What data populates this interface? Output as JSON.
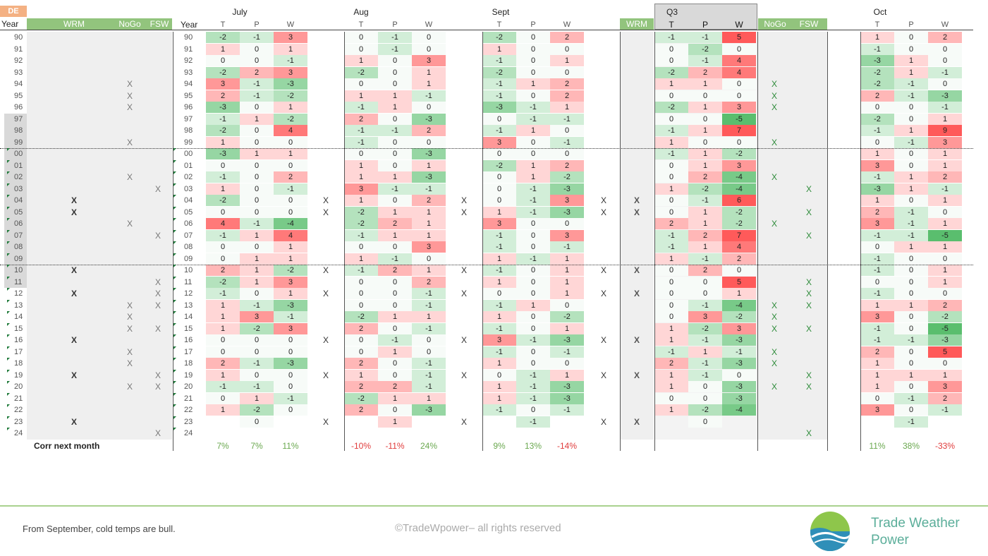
{
  "header": {
    "country": "DE",
    "year_label": "Year",
    "group_labels": [
      "WRM",
      "NoGo",
      "FSW"
    ],
    "months": [
      "July",
      "Aug",
      "Sept",
      "Q3",
      "Oct"
    ],
    "sub_cols": [
      "T",
      "P",
      "W"
    ],
    "q3_wrm": "WRM",
    "q3_nogo": "NoGo",
    "q3_fsw": "FSW"
  },
  "years": [
    "90",
    "91",
    "92",
    "93",
    "94",
    "95",
    "96",
    "97",
    "98",
    "99",
    "00",
    "01",
    "02",
    "03",
    "04",
    "05",
    "06",
    "07",
    "08",
    "09",
    "10",
    "11",
    "12",
    "13",
    "14",
    "15",
    "16",
    "17",
    "18",
    "19",
    "20",
    "21",
    "22",
    "23",
    "24"
  ],
  "shaded_years": [
    7,
    8,
    9,
    10,
    11,
    12,
    13,
    14,
    15,
    16,
    17,
    18,
    19,
    20,
    21
  ],
  "left_marks": {
    "wrm": {
      "14": "X",
      "15": "X",
      "20": "X",
      "22": "X",
      "26": "X",
      "29": "X",
      "33": "X"
    },
    "nogo": {
      "4": "X",
      "5": "X",
      "6": "X",
      "9": "X",
      "12": "X",
      "16": "X",
      "23": "X",
      "24": "X",
      "25": "X",
      "27": "X",
      "28": "X",
      "30": "X"
    },
    "fsw": {
      "13": "X",
      "17": "X",
      "21": "X",
      "22": "X",
      "23": "X",
      "25": "X",
      "29": "X",
      "30": "X",
      "34": "X"
    }
  },
  "month_marks": {
    "14": "X",
    "15": "X",
    "20": "X",
    "22": "X",
    "26": "X",
    "29": "X",
    "33": "X"
  },
  "q3_nogo_marks": {
    "4": "X",
    "5": "X",
    "6": "X",
    "9": "X",
    "12": "X",
    "16": "X",
    "23": "X",
    "24": "X",
    "25": "X",
    "27": "X",
    "28": "X",
    "30": "X"
  },
  "q3_fsw_marks": {
    "13": "X",
    "15": "X",
    "17": "X",
    "21": "X",
    "22": "X",
    "23": "X",
    "25": "X",
    "29": "X",
    "30": "X",
    "34": "X"
  },
  "grid": {
    "July": [
      [
        "-2",
        "-1",
        "3"
      ],
      [
        "1",
        "0",
        "1"
      ],
      [
        "0",
        "0",
        "-1"
      ],
      [
        "-2",
        "2",
        "3"
      ],
      [
        "3",
        "-1",
        "-3"
      ],
      [
        "2",
        "-1",
        "-2"
      ],
      [
        "-3",
        "0",
        "1"
      ],
      [
        "-1",
        "1",
        "-2"
      ],
      [
        "-2",
        "0",
        "4"
      ],
      [
        "1",
        "0",
        "0"
      ],
      [
        "-3",
        "1",
        "1"
      ],
      [
        "0",
        "0",
        "0"
      ],
      [
        "-1",
        "0",
        "2"
      ],
      [
        "1",
        "0",
        "-1"
      ],
      [
        "-2",
        "0",
        "0"
      ],
      [
        "0",
        "0",
        "0"
      ],
      [
        "4",
        "-1",
        "-4"
      ],
      [
        "-1",
        "1",
        "4"
      ],
      [
        "0",
        "0",
        "1"
      ],
      [
        "0",
        "1",
        "1"
      ],
      [
        "2",
        "1",
        "-2"
      ],
      [
        "-2",
        "1",
        "3"
      ],
      [
        "-1",
        "0",
        "1"
      ],
      [
        "1",
        "-1",
        "-3"
      ],
      [
        "1",
        "3",
        "-1"
      ],
      [
        "1",
        "-2",
        "3"
      ],
      [
        "0",
        "0",
        "0"
      ],
      [
        "0",
        "0",
        "0"
      ],
      [
        "2",
        "-1",
        "-3"
      ],
      [
        "1",
        "0",
        "0"
      ],
      [
        "-1",
        "-1",
        "0"
      ],
      [
        "0",
        "1",
        "-1"
      ],
      [
        "1",
        "-2",
        "0"
      ],
      [
        "",
        "0",
        ""
      ],
      [
        "",
        "",
        ""
      ]
    ],
    "Aug": [
      [
        "0",
        "-1",
        "0"
      ],
      [
        "0",
        "-1",
        "0"
      ],
      [
        "1",
        "0",
        "3"
      ],
      [
        "-2",
        "0",
        "1"
      ],
      [
        "0",
        "0",
        "1"
      ],
      [
        "1",
        "1",
        "-1"
      ],
      [
        "-1",
        "1",
        "0"
      ],
      [
        "2",
        "0",
        "-3"
      ],
      [
        "-1",
        "-1",
        "2"
      ],
      [
        "-1",
        "0",
        "0"
      ],
      [
        "0",
        "0",
        "-3"
      ],
      [
        "1",
        "0",
        "1"
      ],
      [
        "1",
        "1",
        "-3"
      ],
      [
        "3",
        "-1",
        "-1"
      ],
      [
        "1",
        "0",
        "2"
      ],
      [
        "-2",
        "1",
        "1"
      ],
      [
        "-2",
        "2",
        "1"
      ],
      [
        "-1",
        "1",
        "1"
      ],
      [
        "0",
        "0",
        "3"
      ],
      [
        "1",
        "-1",
        "0"
      ],
      [
        "-1",
        "2",
        "1"
      ],
      [
        "0",
        "0",
        "2"
      ],
      [
        "0",
        "0",
        "-1"
      ],
      [
        "0",
        "0",
        "-1"
      ],
      [
        "-2",
        "1",
        "1"
      ],
      [
        "2",
        "0",
        "-1"
      ],
      [
        "0",
        "-1",
        "0"
      ],
      [
        "0",
        "1",
        "0"
      ],
      [
        "2",
        "0",
        "-1"
      ],
      [
        "1",
        "0",
        "-1"
      ],
      [
        "2",
        "2",
        "-1"
      ],
      [
        "-2",
        "1",
        "1"
      ],
      [
        "2",
        "0",
        "-3"
      ],
      [
        "",
        "1",
        ""
      ],
      [
        "",
        "",
        ""
      ]
    ],
    "Sept": [
      [
        "-2",
        "0",
        "2"
      ],
      [
        "1",
        "0",
        "0"
      ],
      [
        "-1",
        "0",
        "1"
      ],
      [
        "-2",
        "0",
        "0"
      ],
      [
        "-1",
        "1",
        "2"
      ],
      [
        "-1",
        "0",
        "2"
      ],
      [
        "-3",
        "-1",
        "1"
      ],
      [
        "0",
        "-1",
        "-1"
      ],
      [
        "-1",
        "1",
        "0"
      ],
      [
        "3",
        "0",
        "-1"
      ],
      [
        "0",
        "0",
        "0"
      ],
      [
        "-2",
        "1",
        "2"
      ],
      [
        "0",
        "1",
        "-2"
      ],
      [
        "0",
        "-1",
        "-3"
      ],
      [
        "0",
        "-1",
        "3"
      ],
      [
        "1",
        "-1",
        "-3"
      ],
      [
        "3",
        "0",
        "0"
      ],
      [
        "-1",
        "0",
        "3"
      ],
      [
        "-1",
        "0",
        "-1"
      ],
      [
        "1",
        "-1",
        "1"
      ],
      [
        "-1",
        "0",
        "1"
      ],
      [
        "1",
        "0",
        "1"
      ],
      [
        "0",
        "0",
        "1"
      ],
      [
        "-1",
        "1",
        "0"
      ],
      [
        "1",
        "0",
        "-2"
      ],
      [
        "-1",
        "0",
        "1"
      ],
      [
        "3",
        "-1",
        "-3"
      ],
      [
        "-1",
        "0",
        "-1"
      ],
      [
        "1",
        "0",
        "0"
      ],
      [
        "0",
        "-1",
        "1"
      ],
      [
        "1",
        "-1",
        "-3"
      ],
      [
        "1",
        "-1",
        "-3"
      ],
      [
        "-1",
        "0",
        "-1"
      ],
      [
        "",
        "-1",
        ""
      ],
      [
        "",
        "",
        ""
      ]
    ],
    "Q3": [
      [
        "-1",
        "-1",
        "5"
      ],
      [
        "0",
        "-2",
        "0"
      ],
      [
        "0",
        "-1",
        "4"
      ],
      [
        "-2",
        "2",
        "4"
      ],
      [
        "1",
        "1",
        "0"
      ],
      [
        "0",
        "0",
        "0"
      ],
      [
        "-2",
        "1",
        "3"
      ],
      [
        "0",
        "0",
        "-5"
      ],
      [
        "-1",
        "1",
        "7"
      ],
      [
        "1",
        "0",
        "0"
      ],
      [
        "-1",
        "1",
        "-2"
      ],
      [
        "0",
        "1",
        "3"
      ],
      [
        "0",
        "2",
        "-4"
      ],
      [
        "1",
        "-2",
        "-4"
      ],
      [
        "0",
        "-1",
        "6"
      ],
      [
        "0",
        "1",
        "-2"
      ],
      [
        "2",
        "1",
        "-2"
      ],
      [
        "-1",
        "2",
        "7"
      ],
      [
        "-1",
        "1",
        "4"
      ],
      [
        "1",
        "-1",
        "2"
      ],
      [
        "0",
        "2",
        "0"
      ],
      [
        "0",
        "0",
        "5"
      ],
      [
        "0",
        "0",
        "1"
      ],
      [
        "0",
        "-1",
        "-4"
      ],
      [
        "0",
        "3",
        "-2"
      ],
      [
        "1",
        "-2",
        "3"
      ],
      [
        "1",
        "-1",
        "-3"
      ],
      [
        "-1",
        "1",
        "-1"
      ],
      [
        "2",
        "-1",
        "-3"
      ],
      [
        "1",
        "-1",
        "0"
      ],
      [
        "1",
        "0",
        "-3"
      ],
      [
        "0",
        "0",
        "-3"
      ],
      [
        "1",
        "-2",
        "-4"
      ],
      [
        "",
        "0",
        ""
      ],
      [
        "",
        "",
        ""
      ]
    ],
    "Oct": [
      [
        "1",
        "0",
        "2"
      ],
      [
        "-1",
        "0",
        "0"
      ],
      [
        "-3",
        "1",
        "0"
      ],
      [
        "-2",
        "1",
        "-1"
      ],
      [
        "-2",
        "-1",
        "0"
      ],
      [
        "2",
        "-1",
        "-3"
      ],
      [
        "0",
        "0",
        "-1"
      ],
      [
        "-2",
        "0",
        "1"
      ],
      [
        "-1",
        "1",
        "9"
      ],
      [
        "0",
        "-1",
        "3"
      ],
      [
        "1",
        "0",
        "1"
      ],
      [
        "3",
        "0",
        "1"
      ],
      [
        "-1",
        "1",
        "2"
      ],
      [
        "-3",
        "1",
        "-1"
      ],
      [
        "1",
        "0",
        "1"
      ],
      [
        "2",
        "-1",
        "0"
      ],
      [
        "3",
        "-1",
        "1"
      ],
      [
        "-1",
        "-1",
        "-5"
      ],
      [
        "0",
        "1",
        "1"
      ],
      [
        "-1",
        "0",
        "0"
      ],
      [
        "-1",
        "0",
        "1"
      ],
      [
        "0",
        "0",
        "1"
      ],
      [
        "-1",
        "0",
        "0"
      ],
      [
        "1",
        "1",
        "2"
      ],
      [
        "3",
        "0",
        "-2"
      ],
      [
        "-1",
        "0",
        "-5"
      ],
      [
        "-1",
        "-1",
        "-3"
      ],
      [
        "2",
        "0",
        "5"
      ],
      [
        "1",
        "0",
        "0"
      ],
      [
        "1",
        "1",
        "1"
      ],
      [
        "1",
        "0",
        "3"
      ],
      [
        "0",
        "-1",
        "2"
      ],
      [
        "3",
        "0",
        "-1"
      ],
      [
        "",
        "-1",
        ""
      ],
      [
        "",
        "",
        ""
      ]
    ]
  },
  "corr": {
    "label": "Corr next month",
    "July": [
      "7%",
      "7%",
      "11%"
    ],
    "Aug": [
      "-10%",
      "-11%",
      "24%"
    ],
    "Sept": [
      "9%",
      "13%",
      "-14%"
    ],
    "Oct": [
      "11%",
      "38%",
      "-33%"
    ]
  },
  "colors": {
    "pos": "#e8514f",
    "neg": "#3aa655",
    "accent_green": "#92c47d",
    "header_orange": "#f4b183"
  },
  "footer": {
    "note": "From September, cold temps are bull.",
    "copyright": "©TradeWpower– all rights reserved",
    "brand_line1": "Trade Weather",
    "brand_line2": "Power"
  }
}
